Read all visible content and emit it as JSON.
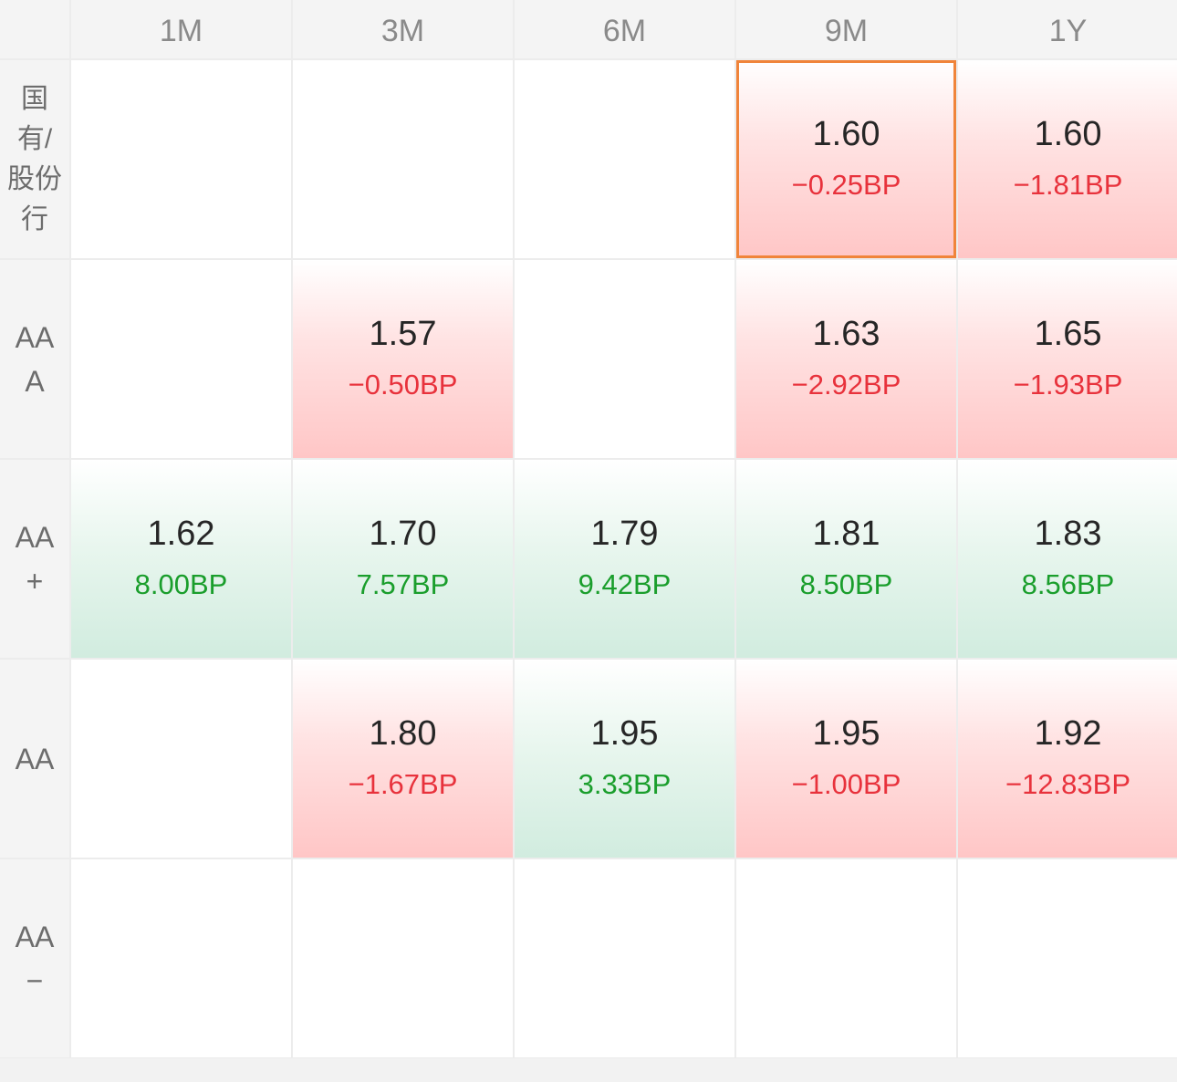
{
  "columns": [
    "1M",
    "3M",
    "6M",
    "9M",
    "1Y"
  ],
  "rows": [
    {
      "label": "国\n有/\n股份\n行",
      "cells": [
        null,
        null,
        null,
        {
          "yield": "1.60",
          "change": "−0.25BP",
          "direction": "up",
          "selected": true
        },
        {
          "yield": "1.60",
          "change": "−1.81BP",
          "direction": "up"
        }
      ]
    },
    {
      "label": "AA\nA",
      "cells": [
        null,
        {
          "yield": "1.57",
          "change": "−0.50BP",
          "direction": "up"
        },
        null,
        {
          "yield": "1.63",
          "change": "−2.92BP",
          "direction": "up"
        },
        {
          "yield": "1.65",
          "change": "−1.93BP",
          "direction": "up"
        }
      ]
    },
    {
      "label": "AA\n+",
      "cells": [
        {
          "yield": "1.62",
          "change": "8.00BP",
          "direction": "down"
        },
        {
          "yield": "1.70",
          "change": "7.57BP",
          "direction": "down"
        },
        {
          "yield": "1.79",
          "change": "9.42BP",
          "direction": "down"
        },
        {
          "yield": "1.81",
          "change": "8.50BP",
          "direction": "down"
        },
        {
          "yield": "1.83",
          "change": "8.56BP",
          "direction": "down"
        }
      ]
    },
    {
      "label": "AA",
      "cells": [
        null,
        {
          "yield": "1.80",
          "change": "−1.67BP",
          "direction": "up"
        },
        {
          "yield": "1.95",
          "change": "3.33BP",
          "direction": "down"
        },
        {
          "yield": "1.95",
          "change": "−1.00BP",
          "direction": "up"
        },
        {
          "yield": "1.92",
          "change": "−12.83BP",
          "direction": "up"
        }
      ]
    },
    {
      "label": "AA\n−",
      "cells": [
        null,
        null,
        null,
        null,
        null
      ]
    }
  ],
  "colors": {
    "negative_change": "#e8323c",
    "positive_change": "#1a9e2c",
    "selected_outline": "#f0843a",
    "up_fill": "#ffc6c6",
    "down_fill": "#d1ecdf"
  }
}
